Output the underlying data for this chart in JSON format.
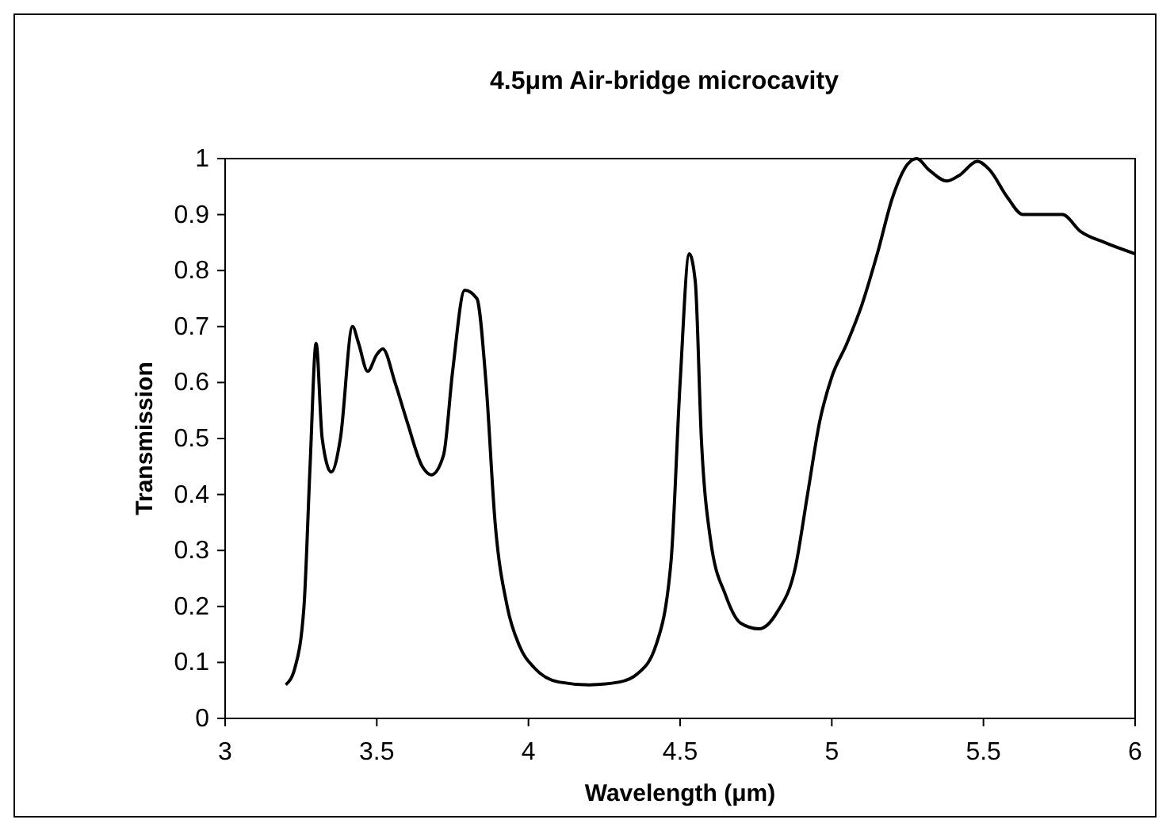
{
  "chart_data": {
    "type": "line",
    "title": "4.5μm Air-bridge microcavity",
    "xlabel": "Wavelength (μm)",
    "ylabel": "Transmission",
    "xlim": [
      3,
      6
    ],
    "xticks": [
      3,
      3.5,
      4,
      4.5,
      5,
      5.5,
      6
    ],
    "ylim": [
      0,
      1
    ],
    "yticks": [
      0,
      0.1,
      0.2,
      0.3,
      0.4,
      0.5,
      0.6,
      0.7,
      0.8,
      0.9,
      1
    ],
    "grid": false,
    "marker": "none",
    "line_style": "solid",
    "x": [
      3.2,
      3.23,
      3.26,
      3.28,
      3.3,
      3.32,
      3.35,
      3.38,
      3.42,
      3.44,
      3.47,
      3.5,
      3.52,
      3.56,
      3.6,
      3.65,
      3.68,
      3.72,
      3.75,
      3.79,
      3.83,
      3.86,
      3.89,
      3.93,
      3.97,
      4.02,
      4.1,
      4.2,
      4.3,
      4.36,
      4.42,
      4.47,
      4.5,
      4.53,
      4.55,
      4.57,
      4.6,
      4.65,
      4.7,
      4.76,
      4.82,
      4.88,
      4.92,
      4.96,
      5.0,
      5.05,
      5.1,
      5.15,
      5.2,
      5.25,
      5.28,
      5.32,
      5.38,
      5.42,
      5.48,
      5.52,
      5.58,
      5.63,
      5.7,
      5.76,
      5.82,
      5.9,
      6.0
    ],
    "series": [
      {
        "color": "#000000",
        "values": [
          0.06,
          0.09,
          0.2,
          0.45,
          0.67,
          0.5,
          0.44,
          0.5,
          0.7,
          0.67,
          0.62,
          0.65,
          0.66,
          0.6,
          0.53,
          0.45,
          0.435,
          0.47,
          0.62,
          0.765,
          0.75,
          0.6,
          0.35,
          0.2,
          0.13,
          0.09,
          0.065,
          0.06,
          0.065,
          0.08,
          0.13,
          0.28,
          0.6,
          0.83,
          0.78,
          0.5,
          0.32,
          0.22,
          0.17,
          0.16,
          0.19,
          0.27,
          0.4,
          0.53,
          0.61,
          0.67,
          0.74,
          0.83,
          0.93,
          0.99,
          1.0,
          0.98,
          0.96,
          0.97,
          0.995,
          0.98,
          0.93,
          0.9,
          0.9,
          0.9,
          0.87,
          0.85,
          0.83
        ]
      }
    ]
  }
}
